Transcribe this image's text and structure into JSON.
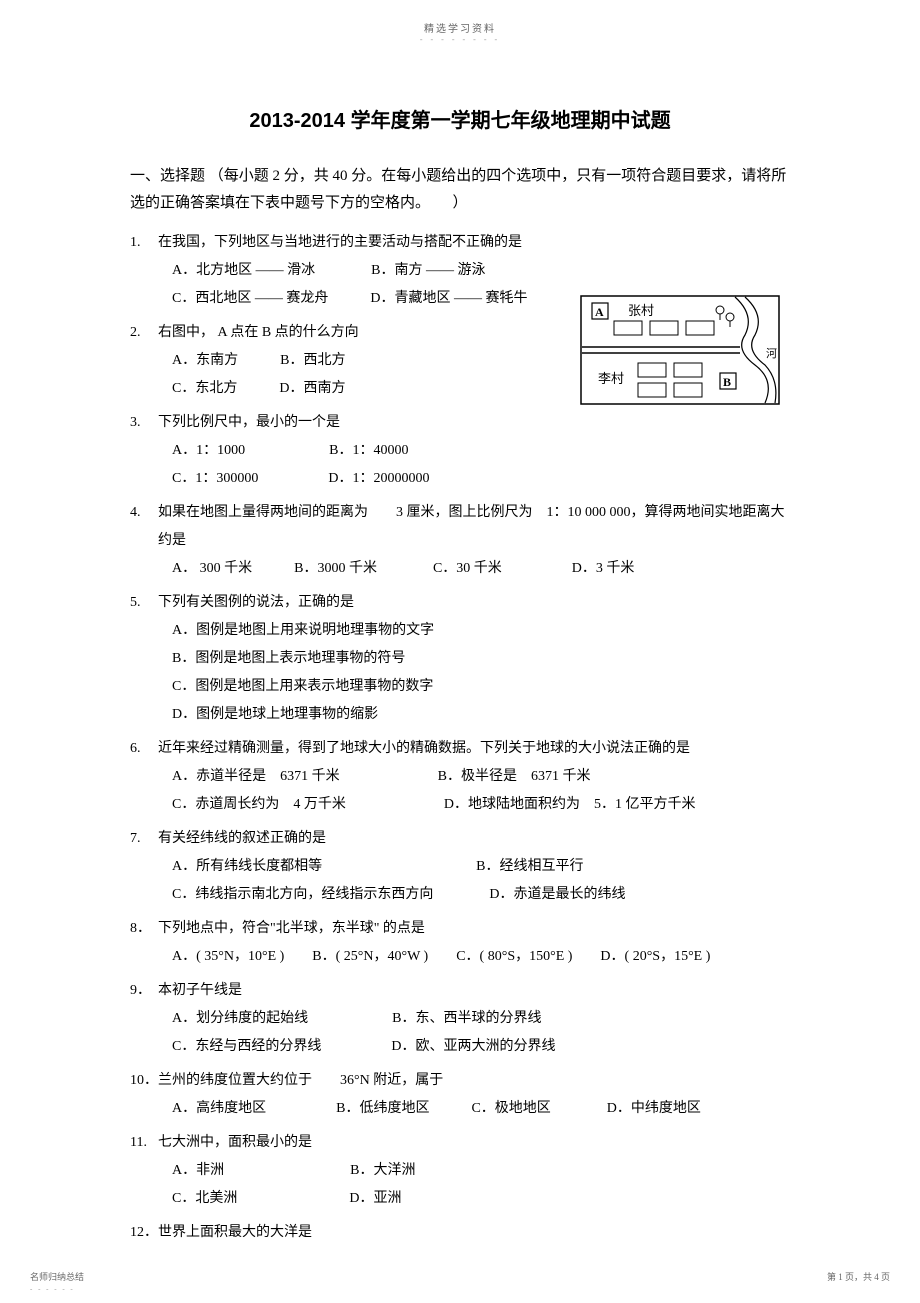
{
  "header": {
    "small_text": "精选学习资料",
    "dot_line": "- - - - - - - -"
  },
  "title": "2013-2014 学年度第一学期七年级地理期中试题",
  "section1": {
    "heading": "一、选择题 （每小题 2 分，共 40 分。在每小题给出的四个选项中，只有一项符合题目要求，请将所选的正确答案填在下表中题号下方的空格内。　　）"
  },
  "questions": [
    {
      "num": "1.",
      "stem": "在我国，下列地区与当地进行的主要活动与搭配不正确的是",
      "lines": [
        "A．北方地区 —— 滑冰　　　　B．南方 —— 游泳",
        "C．西北地区 —— 赛龙舟　　　D．青藏地区 —— 赛牦牛"
      ]
    },
    {
      "num": "2.",
      "stem": "右图中， A 点在 B 点的什么方向",
      "lines": [
        "A．东南方　　　B．西北方",
        "C．东北方　　　D．西南方"
      ]
    },
    {
      "num": "3.",
      "stem": "下列比例尺中，最小的一个是",
      "lines": [
        "A．1：1000　　　　　　B．1：40000",
        "C．1：300000　　　　　D．1：20000000"
      ]
    },
    {
      "num": "4.",
      "stem": "如果在地图上量得两地间的距离为　　3 厘米，图上比例尺为　1：10 000 000，算得两地间实地距离大约是",
      "lines": [
        "A． 300 千米　　　B．3000 千米　　　　C．30 千米　　　　　D．3 千米"
      ]
    },
    {
      "num": "5.",
      "stem": "下列有关图例的说法，正确的是",
      "lines": [
        "A．图例是地图上用来说明地理事物的文字",
        "B．图例是地图上表示地理事物的符号",
        "C．图例是地图上用来表示地理事物的数字",
        "D．图例是地球上地理事物的缩影"
      ]
    },
    {
      "num": "6.",
      "stem": "近年来经过精确测量，得到了地球大小的精确数据。下列关于地球的大小说法正确的是",
      "lines": [
        "A．赤道半径是　6371 千米　　　　　　　B．极半径是　6371 千米",
        "C．赤道周长约为　4 万千米　　　　　　　D．地球陆地面积约为　5．1 亿平方千米"
      ]
    },
    {
      "num": "7.",
      "stem": "有关经纬线的叙述正确的是",
      "lines": [
        "A．所有纬线长度都相等　　　　　　　　　　　B．经线相互平行",
        "C．纬线指示南北方向，经线指示东西方向　　　　D．赤道是最长的纬线"
      ]
    },
    {
      "num": "8．",
      "stem": "下列地点中，符合\"北半球，东半球\" 的点是",
      "lines": [
        "A．( 35°N，10°E )　　B．( 25°N，40°W )　　C．( 80°S，150°E )　　D．( 20°S，15°E )"
      ]
    },
    {
      "num": "9．",
      "stem": "本初子午线是",
      "lines": [
        "A．划分纬度的起始线　　　　　　B．东、西半球的分界线",
        "C．东经与西经的分界线　　　　　D．欧、亚两大洲的分界线"
      ]
    },
    {
      "num": "10．",
      "stem": "兰州的纬度位置大约位于　　36°N 附近，属于",
      "lines": [
        "A．高纬度地区　　　　　B．低纬度地区　　　C．极地地区　　　　D．中纬度地区"
      ]
    },
    {
      "num": "11.",
      "stem": "七大洲中，面积最小的是",
      "lines": [
        "A．非洲　　　　　　　　　B．大洋洲",
        "C．北美洲　　　　　　　　D．亚洲"
      ]
    },
    {
      "num": "12．",
      "stem": "世界上面积最大的大洋是",
      "lines": []
    }
  ],
  "map": {
    "label_a": "A",
    "label_b": "B",
    "village1": "张村",
    "village2": "李村",
    "river": "河",
    "stroke": "#000000",
    "fill": "#ffffff"
  },
  "footer": {
    "left": "名师归纳总结",
    "left_dots": "- - - - - -",
    "right": "第 1 页，共 4 页"
  },
  "style": {
    "background_color": "#ffffff",
    "text_color": "#000000",
    "title_fontsize": 20,
    "body_fontsize": 14,
    "header_small_color": "#666666"
  }
}
